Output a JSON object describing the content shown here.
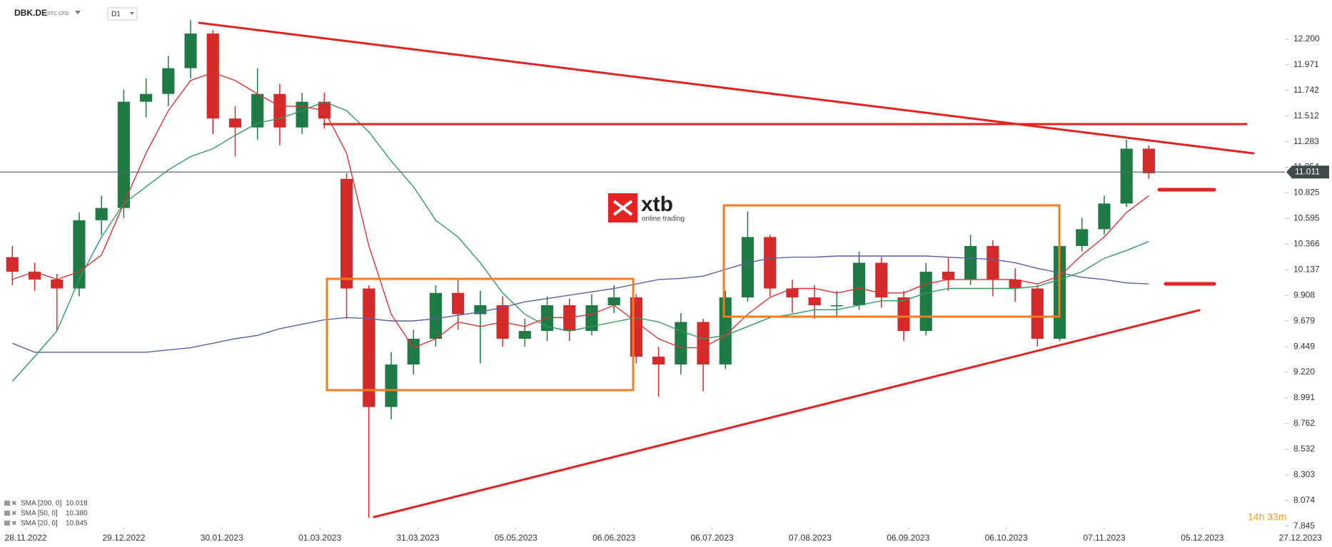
{
  "header": {
    "symbol": "DBK.DE",
    "instrument": "STC CFD",
    "timeframe": "D1"
  },
  "watermark": {
    "brand": "xtb",
    "tagline": "online trading"
  },
  "countdown": "14h 33m",
  "chart_data": {
    "type": "candlestick",
    "up_color": "#1f7a45",
    "down_color": "#d42a2a",
    "x": [
      2,
      7,
      12,
      17,
      22,
      27,
      32,
      37,
      42,
      47,
      52,
      57,
      62,
      67,
      72,
      77,
      82,
      87,
      92,
      97,
      102,
      107,
      112,
      117,
      122,
      127,
      132,
      137,
      142,
      147,
      152,
      157,
      162,
      167,
      172,
      177,
      182,
      187,
      192,
      197,
      202,
      207,
      212,
      217,
      222,
      227,
      232,
      237,
      242,
      247,
      252,
      257
    ],
    "open": [
      10.25,
      10.12,
      10.05,
      9.97,
      10.58,
      10.69,
      11.64,
      11.71,
      11.94,
      12.25,
      11.49,
      11.41,
      11.71,
      11.41,
      11.64,
      10.95,
      9.97,
      8.91,
      9.29,
      9.52,
      9.93,
      9.74,
      9.82,
      9.52,
      9.59,
      9.82,
      9.59,
      9.82,
      9.89,
      9.36,
      9.29,
      9.67,
      9.29,
      9.89,
      10.43,
      9.97,
      9.89,
      9.82,
      9.82,
      10.2,
      9.89,
      9.59,
      10.12,
      10.05,
      10.35,
      10.05,
      9.97,
      9.52,
      10.35,
      10.5,
      10.73,
      11.22
    ],
    "high": [
      10.35,
      10.2,
      10.1,
      10.65,
      10.8,
      11.75,
      11.85,
      12.05,
      12.37,
      12.28,
      11.6,
      11.94,
      11.8,
      11.72,
      11.72,
      11.0,
      10.0,
      9.4,
      9.6,
      10.0,
      10.05,
      9.95,
      9.9,
      9.7,
      9.9,
      9.88,
      9.92,
      10.0,
      9.92,
      9.45,
      9.75,
      9.7,
      9.95,
      10.66,
      10.45,
      10.05,
      10.0,
      9.95,
      10.3,
      10.25,
      9.95,
      10.2,
      10.25,
      10.45,
      10.4,
      10.15,
      10.0,
      10.4,
      10.6,
      10.8,
      11.3,
      11.25
    ],
    "low": [
      10.0,
      9.95,
      9.6,
      9.9,
      10.45,
      10.6,
      11.5,
      11.6,
      11.85,
      11.35,
      11.15,
      11.3,
      11.25,
      11.35,
      11.4,
      9.7,
      7.92,
      8.8,
      9.2,
      9.45,
      9.6,
      9.3,
      9.45,
      9.45,
      9.5,
      9.5,
      9.55,
      9.75,
      9.3,
      9.0,
      9.2,
      9.05,
      9.25,
      9.85,
      9.9,
      9.75,
      9.7,
      9.72,
      9.78,
      9.8,
      9.5,
      9.55,
      9.95,
      10.0,
      9.9,
      9.85,
      9.45,
      9.5,
      10.3,
      10.45,
      10.7,
      10.95
    ],
    "close": [
      10.12,
      10.05,
      9.97,
      10.58,
      10.69,
      11.64,
      11.71,
      11.94,
      12.25,
      11.49,
      11.41,
      11.71,
      11.41,
      11.64,
      11.49,
      9.97,
      8.91,
      9.29,
      9.52,
      9.93,
      9.74,
      9.82,
      9.52,
      9.59,
      9.82,
      9.59,
      9.82,
      9.89,
      9.36,
      9.29,
      9.67,
      9.29,
      9.89,
      10.43,
      9.97,
      9.89,
      9.82,
      9.82,
      10.2,
      9.89,
      9.59,
      10.12,
      10.05,
      10.35,
      10.05,
      9.97,
      9.52,
      10.35,
      10.5,
      10.73,
      11.22,
      11.0
    ],
    "series": [
      {
        "name": "SMA [200, 0]",
        "legend_value": 10.018,
        "color": "#5a5fa8",
        "values": [
          9.48,
          9.4,
          9.4,
          9.4,
          9.4,
          9.4,
          9.4,
          9.42,
          9.44,
          9.48,
          9.52,
          9.55,
          9.61,
          9.65,
          9.69,
          9.71,
          9.7,
          9.68,
          9.68,
          9.7,
          9.73,
          9.76,
          9.8,
          9.85,
          9.88,
          9.91,
          9.94,
          9.97,
          10.01,
          10.05,
          10.06,
          10.08,
          10.14,
          10.2,
          10.24,
          10.25,
          10.25,
          10.26,
          10.26,
          10.26,
          10.26,
          10.26,
          10.25,
          10.24,
          10.23,
          10.2,
          10.15,
          10.11,
          10.07,
          10.05,
          10.02,
          10.01
        ]
      },
      {
        "name": "SMA [50, 0]",
        "legend_value": 10.38,
        "color": "#2e9a62",
        "values": [
          9.14,
          9.36,
          9.59,
          10.05,
          10.43,
          10.73,
          10.88,
          11.03,
          11.15,
          11.22,
          11.34,
          11.45,
          11.49,
          11.56,
          11.64,
          11.56,
          11.37,
          11.11,
          10.88,
          10.58,
          10.43,
          10.2,
          9.93,
          9.74,
          9.63,
          9.59,
          9.63,
          9.67,
          9.71,
          9.67,
          9.59,
          9.52,
          9.55,
          9.63,
          9.71,
          9.74,
          9.78,
          9.78,
          9.82,
          9.86,
          9.86,
          9.93,
          9.97,
          9.97,
          9.97,
          9.97,
          9.99,
          10.05,
          10.12,
          10.24,
          10.31,
          10.39
        ]
      },
      {
        "name": "SMA [20, 0]",
        "legend_value": 10.845,
        "color": "#e03030",
        "values": [
          10.05,
          10.12,
          10.05,
          10.12,
          10.27,
          10.73,
          11.18,
          11.56,
          11.83,
          11.9,
          11.83,
          11.71,
          11.6,
          11.6,
          11.56,
          11.18,
          10.35,
          9.74,
          9.44,
          9.52,
          9.67,
          9.63,
          9.67,
          9.63,
          9.71,
          9.71,
          9.74,
          9.82,
          9.67,
          9.52,
          9.44,
          9.44,
          9.55,
          9.74,
          9.89,
          9.97,
          9.97,
          9.93,
          9.97,
          9.93,
          9.93,
          10.01,
          10.05,
          10.05,
          10.05,
          10.05,
          10.01,
          10.08,
          10.27,
          10.43,
          10.65,
          10.8
        ]
      }
    ],
    "last_price": 11.011,
    "xlim": [
      -0.77,
      298.1
    ],
    "ylim": [
      7.83,
      12.55
    ],
    "yticks": [
      {
        "value": 12.2,
        "label": "12.200"
      },
      11.971,
      11.742,
      11.512,
      11.283,
      11.054,
      10.825,
      10.595,
      10.366,
      10.137,
      9.908,
      9.679,
      9.449,
      {
        "value": 9.22,
        "label": "9.220"
      },
      8.991,
      8.762,
      8.532,
      8.303,
      8.074,
      7.845
    ],
    "xticks": [
      {
        "value": 5,
        "label": "28.11.2022"
      },
      {
        "value": 27,
        "label": "29.12.2022"
      },
      {
        "value": 49,
        "label": "30.01.2023"
      },
      {
        "value": 71,
        "label": "01.03.2023"
      },
      {
        "value": 93,
        "label": "31.03.2023"
      },
      {
        "value": 115,
        "label": "05.05.2023"
      },
      {
        "value": 137,
        "label": "06.06.2023"
      },
      {
        "value": 159,
        "label": "06.07.2023"
      },
      {
        "value": 181,
        "label": "07.08.2023"
      },
      {
        "value": 203,
        "label": "06.09.2023"
      },
      {
        "value": 225,
        "label": "06.10.2023"
      },
      {
        "value": 247,
        "label": "07.11.2023"
      },
      {
        "value": 269,
        "label": "05.12.2023"
      },
      {
        "value": 291,
        "label": "27.12.2023"
      }
    ]
  }
}
